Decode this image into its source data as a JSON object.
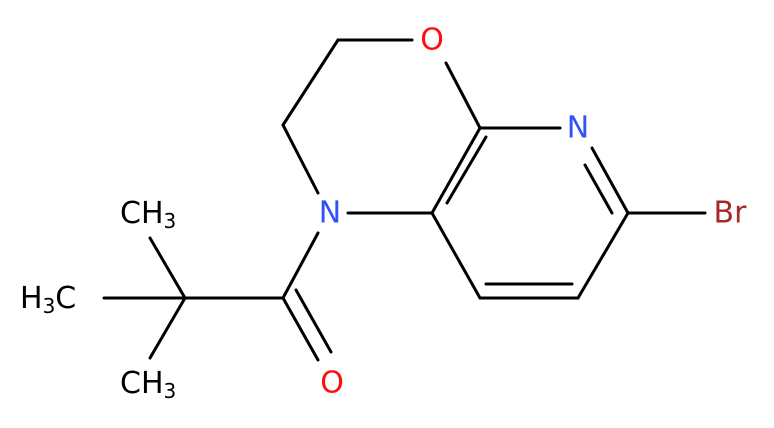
{
  "atoms": [
    {
      "label": "O",
      "color": "#ff0d0d"
    },
    {
      "label": "N",
      "color": "#3050f8"
    },
    {
      "label": "Br",
      "color": "#a62929"
    },
    {
      "label": "N",
      "color": "#3050f8"
    },
    {
      "label": "O",
      "color": "#ff0d0d"
    },
    {
      "label": "CH",
      "subscript": "3",
      "color": "#000000"
    },
    {
      "label": "H",
      "subscript": "3",
      "suffix": "C",
      "color": "#000000"
    },
    {
      "label": "CH",
      "subscript": "3",
      "color": "#000000"
    }
  ]
}
